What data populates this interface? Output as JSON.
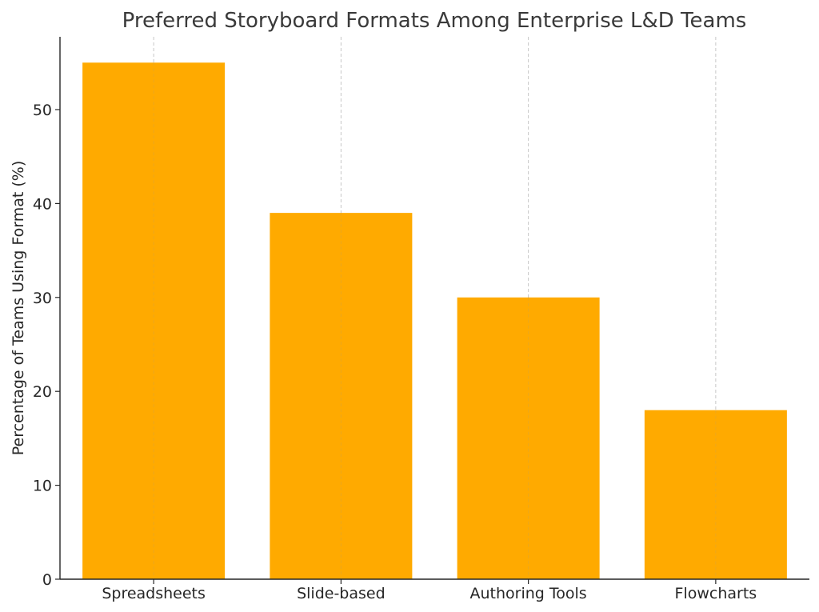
{
  "chart_data": {
    "type": "bar",
    "title": "Preferred Storyboard Formats Among Enterprise L&D Teams",
    "xlabel": "",
    "ylabel": "Percentage of Teams Using Format (%)",
    "categories": [
      "Spreadsheets",
      "Slide-based",
      "Authoring Tools",
      "Flowcharts"
    ],
    "values": [
      55,
      39,
      30,
      18
    ],
    "ylim": [
      0,
      57.75
    ],
    "yticks": [
      0,
      10,
      20,
      30,
      40,
      50
    ],
    "grid": "vertical dashed at category centers",
    "bar_color": "#FFAA00",
    "grid_color": "#c8c8c8",
    "axis_color": "#262626"
  }
}
